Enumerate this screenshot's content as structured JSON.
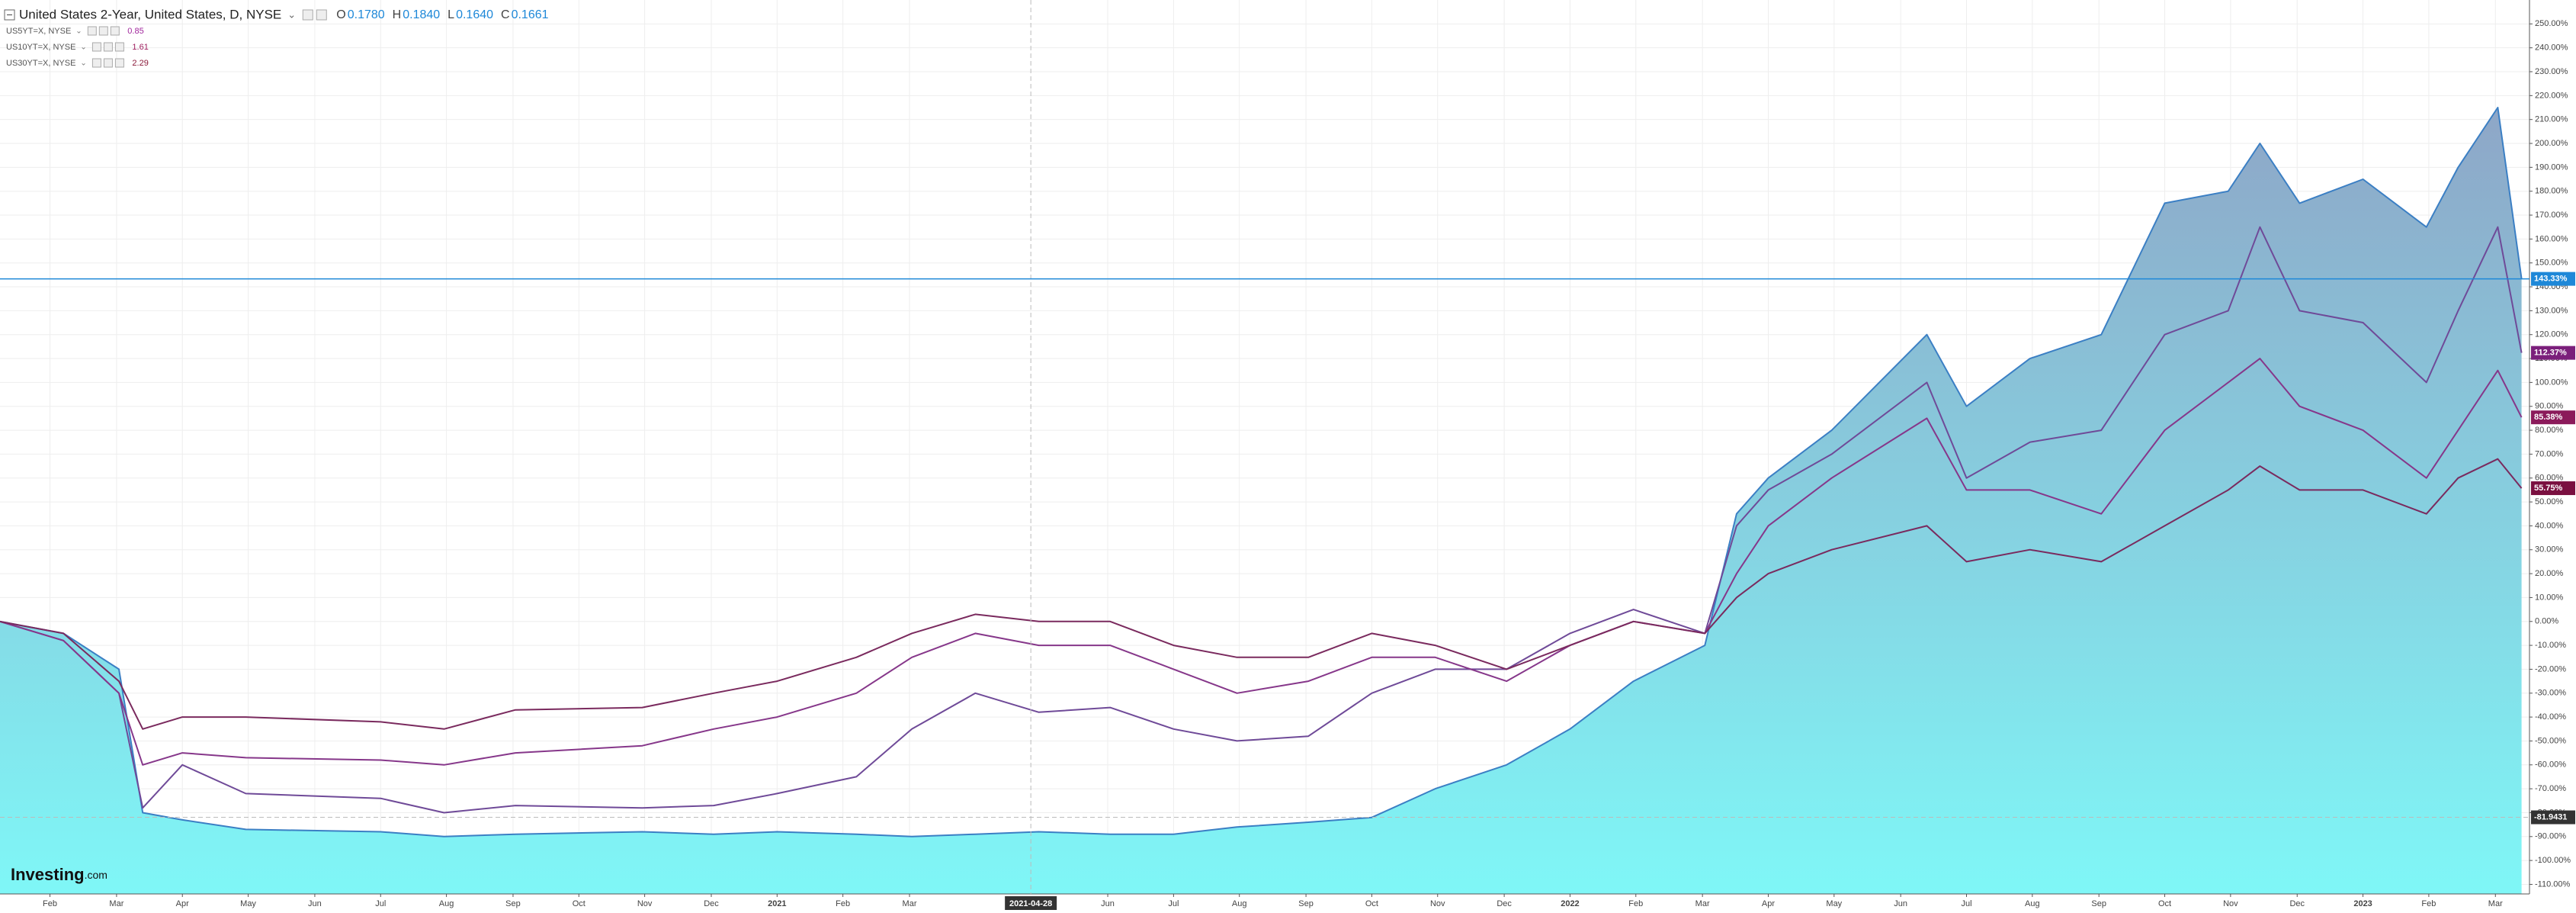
{
  "chart_data": {
    "type": "line",
    "title": "United States 2-Year, United States, D, NYSE",
    "ohlc": [
      {
        "label": "O",
        "value": "0.1780"
      },
      {
        "label": "H",
        "value": "0.1840"
      },
      {
        "label": "L",
        "value": "0.1640"
      },
      {
        "label": "C",
        "value": "0.1661"
      }
    ],
    "logo": [
      "Investing",
      ".com"
    ],
    "grid": true,
    "xlim": [
      2020.02,
      2023.21
    ],
    "ylim": [
      -114,
      260
    ],
    "x": [
      2020.02,
      2020.1,
      2020.17,
      2020.2,
      2020.25,
      2020.33,
      2020.5,
      2020.58,
      2020.67,
      2020.83,
      2020.92,
      2021.0,
      2021.1,
      2021.17,
      2021.25,
      2021.33,
      2021.42,
      2021.5,
      2021.58,
      2021.67,
      2021.75,
      2021.83,
      2021.92,
      2022.0,
      2022.08,
      2022.17,
      2022.21,
      2022.25,
      2022.33,
      2022.45,
      2022.5,
      2022.58,
      2022.67,
      2022.75,
      2022.83,
      2022.87,
      2022.92,
      2023.0,
      2023.08,
      2023.12,
      2023.17,
      2023.2
    ],
    "series": [
      {
        "name": "United States 2-Year",
        "style": "area",
        "color": "#3b7fc4",
        "fill_top": "#8ea6c7",
        "fill_bottom": "#7ff7f7",
        "tag_color": "#1e88d8",
        "last_value_label": "143.33%",
        "values": [
          0,
          -5,
          -20,
          -80,
          -83,
          -87,
          -88,
          -90,
          -89,
          -88,
          -89,
          -88,
          -89,
          -90,
          -89,
          -88,
          -89,
          -89,
          -86,
          -84,
          -82,
          -70,
          -60,
          -45,
          -25,
          -10,
          45,
          60,
          80,
          120,
          90,
          110,
          120,
          175,
          180,
          200,
          175,
          185,
          165,
          190,
          215,
          143.33
        ]
      },
      {
        "name": "US5YT=X, NYSE",
        "style": "line",
        "color": "#6f4a98",
        "legend_value": 0.85,
        "legend_value_color": "#a0269c",
        "tag_color": "#7b1f7b",
        "last_value_label": "112.37%",
        "values": [
          0,
          -8,
          -30,
          -78,
          -60,
          -72,
          -74,
          -80,
          -77,
          -78,
          -77,
          -72,
          -65,
          -45,
          -30,
          -38,
          -36,
          -45,
          -50,
          -48,
          -30,
          -20,
          -20,
          -5,
          5,
          -5,
          40,
          55,
          70,
          100,
          60,
          75,
          80,
          120,
          130,
          165,
          130,
          125,
          100,
          130,
          165,
          112.37
        ]
      },
      {
        "name": "US10YT=X, NYSE",
        "style": "line",
        "color": "#86378a",
        "legend_value": 1.61,
        "legend_value_color": "#a02060",
        "tag_color": "#8b1a5a",
        "last_value_label": "85.38%",
        "values": [
          0,
          -8,
          -30,
          -60,
          -55,
          -57,
          -58,
          -60,
          -55,
          -52,
          -45,
          -40,
          -30,
          -15,
          -5,
          -10,
          -10,
          -20,
          -30,
          -25,
          -15,
          -15,
          -25,
          -10,
          0,
          -5,
          20,
          40,
          60,
          85,
          55,
          55,
          45,
          80,
          100,
          110,
          90,
          80,
          60,
          80,
          105,
          85.38
        ]
      },
      {
        "name": "US30YT=X, NYSE",
        "style": "line",
        "color": "#7a2a5e",
        "legend_value": 2.29,
        "legend_value_color": "#8b1a3a",
        "tag_color": "#7a1040",
        "last_value_label": "55.75%",
        "values": [
          0,
          -5,
          -25,
          -45,
          -40,
          -40,
          -42,
          -45,
          -37,
          -36,
          -30,
          -25,
          -15,
          -5,
          3,
          0,
          0,
          -10,
          -15,
          -15,
          -5,
          -10,
          -20,
          -10,
          0,
          -5,
          10,
          20,
          30,
          40,
          25,
          30,
          25,
          40,
          55,
          65,
          55,
          55,
          45,
          60,
          68,
          55.75
        ]
      }
    ],
    "crosshair": {
      "x": 2021.32,
      "x_label": "2021-04-28",
      "y": -81.9431,
      "y_label": "-81.9431"
    },
    "xticks": [
      {
        "value": 2020.083,
        "label": "Feb"
      },
      {
        "value": 2020.167,
        "label": "Mar"
      },
      {
        "value": 2020.25,
        "label": "Apr"
      },
      {
        "value": 2020.333,
        "label": "May"
      },
      {
        "value": 2020.417,
        "label": "Jun"
      },
      {
        "value": 2020.5,
        "label": "Jul"
      },
      {
        "value": 2020.583,
        "label": "Aug"
      },
      {
        "value": 2020.667,
        "label": "Sep"
      },
      {
        "value": 2020.75,
        "label": "Oct"
      },
      {
        "value": 2020.833,
        "label": "Nov"
      },
      {
        "value": 2020.917,
        "label": "Dec"
      },
      {
        "value": 2021.0,
        "label": "2021"
      },
      {
        "value": 2021.083,
        "label": "Feb"
      },
      {
        "value": 2021.167,
        "label": "Mar"
      },
      {
        "value": 2021.417,
        "label": "Jun"
      },
      {
        "value": 2021.5,
        "label": "Jul"
      },
      {
        "value": 2021.583,
        "label": "Aug"
      },
      {
        "value": 2021.667,
        "label": "Sep"
      },
      {
        "value": 2021.75,
        "label": "Oct"
      },
      {
        "value": 2021.833,
        "label": "Nov"
      },
      {
        "value": 2021.917,
        "label": "Dec"
      },
      {
        "value": 2022.0,
        "label": "2022"
      },
      {
        "value": 2022.083,
        "label": "Feb"
      },
      {
        "value": 2022.167,
        "label": "Mar"
      },
      {
        "value": 2022.25,
        "label": "Apr"
      },
      {
        "value": 2022.333,
        "label": "May"
      },
      {
        "value": 2022.417,
        "label": "Jun"
      },
      {
        "value": 2022.5,
        "label": "Jul"
      },
      {
        "value": 2022.583,
        "label": "Aug"
      },
      {
        "value": 2022.667,
        "label": "Sep"
      },
      {
        "value": 2022.75,
        "label": "Oct"
      },
      {
        "value": 2022.833,
        "label": "Nov"
      },
      {
        "value": 2022.917,
        "label": "Dec"
      },
      {
        "value": 2023.0,
        "label": "2023"
      },
      {
        "value": 2023.083,
        "label": "Feb"
      },
      {
        "value": 2023.167,
        "label": "Mar"
      }
    ],
    "yticks": [
      {
        "value": 250,
        "label": "250.00%"
      },
      {
        "value": 240,
        "label": "240.00%"
      },
      {
        "value": 230,
        "label": "230.00%"
      },
      {
        "value": 220,
        "label": "220.00%"
      },
      {
        "value": 210,
        "label": "210.00%"
      },
      {
        "value": 200,
        "label": "200.00%"
      },
      {
        "value": 190,
        "label": "190.00%"
      },
      {
        "value": 180,
        "label": "180.00%"
      },
      {
        "value": 170,
        "label": "170.00%"
      },
      {
        "value": 160,
        "label": "160.00%"
      },
      {
        "value": 150,
        "label": "150.00%"
      },
      {
        "value": 140,
        "label": "140.00%"
      },
      {
        "value": 130,
        "label": "130.00%"
      },
      {
        "value": 120,
        "label": "120.00%"
      },
      {
        "value": 110,
        "label": "110.00%"
      },
      {
        "value": 100,
        "label": "100.00%"
      },
      {
        "value": 90,
        "label": "90.00%"
      },
      {
        "value": 80,
        "label": "80.00%"
      },
      {
        "value": 70,
        "label": "70.00%"
      },
      {
        "value": 60,
        "label": "60.00%"
      },
      {
        "value": 50,
        "label": "50.00%"
      },
      {
        "value": 40,
        "label": "40.00%"
      },
      {
        "value": 30,
        "label": "30.00%"
      },
      {
        "value": 20,
        "label": "20.00%"
      },
      {
        "value": 10,
        "label": "10.00%"
      },
      {
        "value": 0,
        "label": "0.00%"
      },
      {
        "value": -10,
        "label": "-10.00%"
      },
      {
        "value": -20,
        "label": "-20.00%"
      },
      {
        "value": -30,
        "label": "-30.00%"
      },
      {
        "value": -40,
        "label": "-40.00%"
      },
      {
        "value": -50,
        "label": "-50.00%"
      },
      {
        "value": -60,
        "label": "-60.00%"
      },
      {
        "value": -70,
        "label": "-70.00%"
      },
      {
        "value": -80,
        "label": "-80.00%"
      },
      {
        "value": -90,
        "label": "-90.00%"
      },
      {
        "value": -100,
        "label": "-100.00%"
      },
      {
        "value": -110,
        "label": "-110.00%"
      }
    ]
  }
}
